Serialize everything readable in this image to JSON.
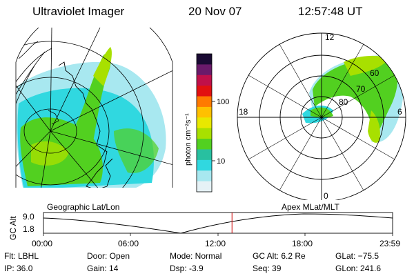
{
  "header": {
    "instrument": "Ultraviolet Imager",
    "date": "20 Nov 07",
    "time": "12:57:48 UT"
  },
  "colorbar": {
    "label": "photon cm⁻²s⁻¹",
    "ticks": [
      "100",
      "10"
    ],
    "colors": [
      "#1a0a33",
      "#6a1a6a",
      "#c0104a",
      "#e21010",
      "#ff7a00",
      "#ffc000",
      "#e8e800",
      "#a8e000",
      "#52d020",
      "#28c0a0",
      "#30d8e0",
      "#a8e8f0",
      "#e6f2f6"
    ]
  },
  "panels": {
    "left_label": "Geographic Lat/Lon",
    "right_label": "Apex MLat/MLT"
  },
  "polar": {
    "mlt_labels": [
      "12",
      "6",
      "0",
      "18"
    ],
    "lat_labels": [
      "60",
      "70",
      "80"
    ]
  },
  "altitude_plot": {
    "ylabel": "GC Alt",
    "yticks": [
      "9.0",
      "1.8"
    ],
    "xticks": [
      "00:00",
      "06:00",
      "12:00",
      "18:00",
      "23:59"
    ],
    "current_hour": 12.96,
    "marker_color": "#cc0000"
  },
  "info": {
    "flt": "Flt: LBHL",
    "ip": "IP: 36.0",
    "door": "Door: Open",
    "gain": "Gain: 14",
    "mode": "Mode: Normal",
    "dsp": "Dsp:    -3.9",
    "gc_alt": "GC Alt: 6.2 Re",
    "seq": "Seq: 39",
    "glat": "GLat: −75.5",
    "glon": "GLon: 241.6"
  }
}
